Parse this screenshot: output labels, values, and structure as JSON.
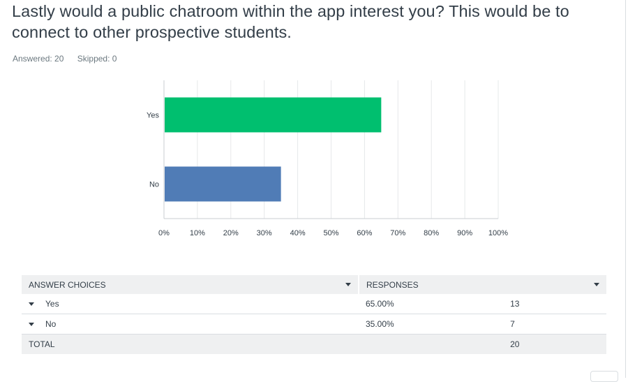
{
  "question": {
    "title": "Lastly would a public chatroom within the app interest you? This would be to connect to other prospective students.",
    "answered_label": "Answered: 20",
    "skipped_label": "Skipped: 0"
  },
  "colors": {
    "yes": "#00bf6f",
    "no": "#507cb6",
    "grid": "#e6e8ea",
    "axis": "#c8cdd1"
  },
  "chart_data": {
    "type": "bar",
    "orientation": "horizontal",
    "categories": [
      "Yes",
      "No"
    ],
    "values": [
      65,
      35
    ],
    "xlim": [
      0,
      100
    ],
    "tick_labels": [
      "0%",
      "10%",
      "20%",
      "30%",
      "40%",
      "50%",
      "60%",
      "70%",
      "80%",
      "90%",
      "100%"
    ],
    "grid": true
  },
  "table": {
    "headers": {
      "choices": "ANSWER CHOICES",
      "responses": "RESPONSES"
    },
    "rows": [
      {
        "choice": "Yes",
        "percent": "65.00%",
        "count": "13"
      },
      {
        "choice": "No",
        "percent": "35.00%",
        "count": "7"
      }
    ],
    "total_label": "TOTAL",
    "total_count": "20"
  }
}
